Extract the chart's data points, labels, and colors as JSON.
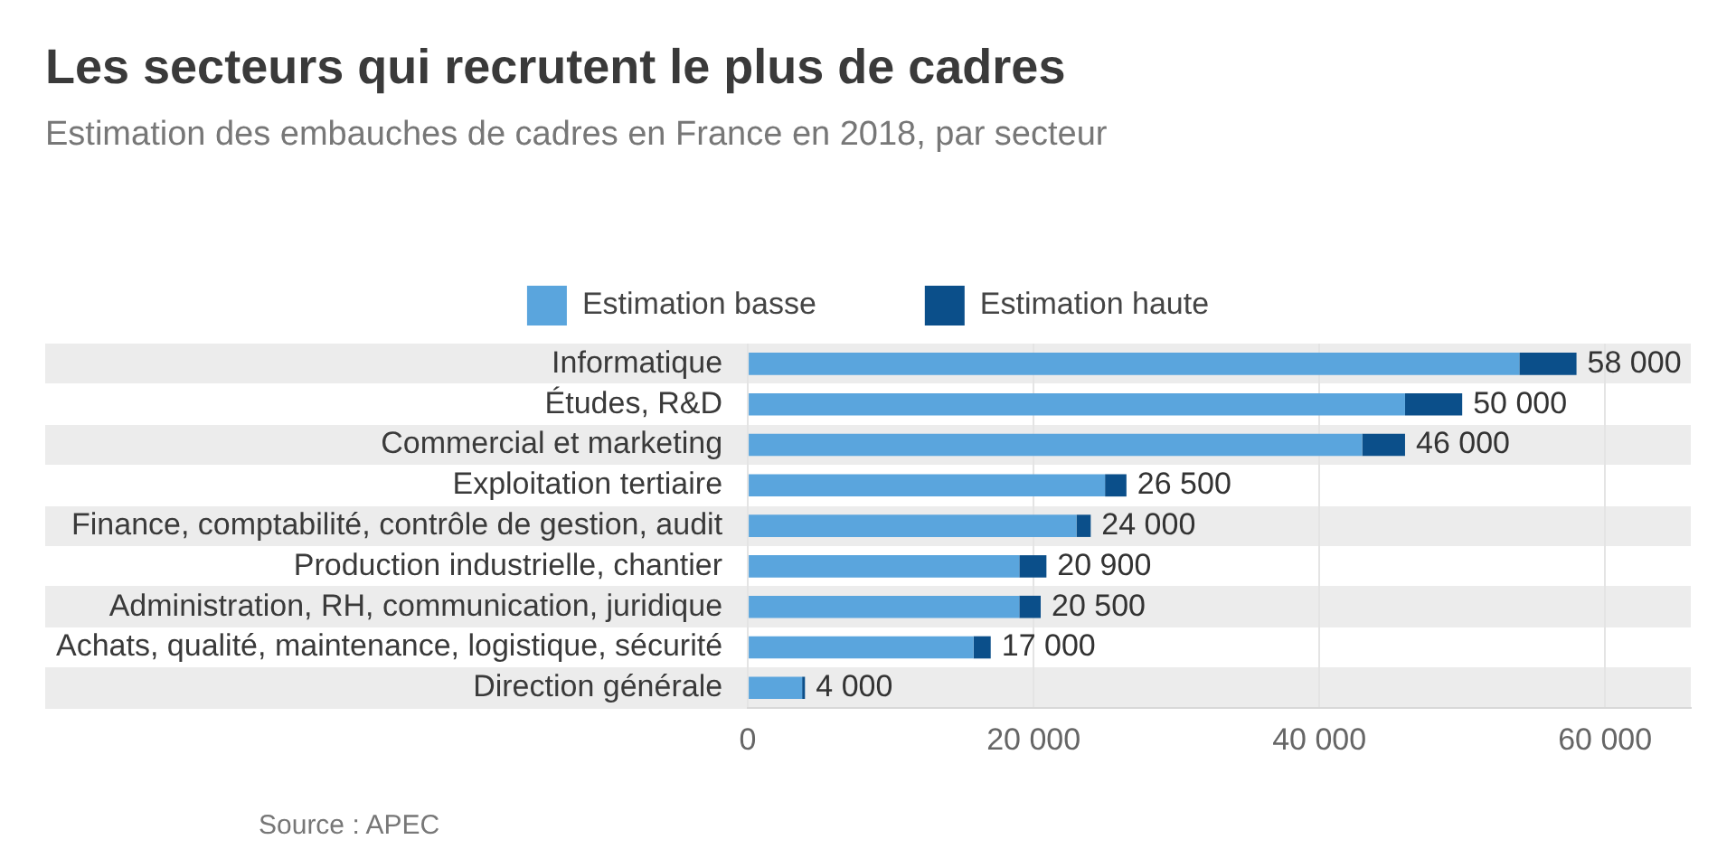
{
  "chart_data": {
    "type": "bar",
    "orientation": "horizontal",
    "stacked": true,
    "title": "Les secteurs qui recrutent le plus de cadres",
    "subtitle": "Estimation des embauches de cadres en France en 2018, par secteur",
    "categories": [
      "Informatique",
      "Études, R&D",
      "Commercial et marketing",
      "Exploitation tertiaire",
      "Finance, comptabilité, contrôle de gestion, audit",
      "Production industrielle, chantier",
      "Administration, RH, communication, juridique",
      "Achats, qualité, maintenance, logistique, sécurité",
      "Direction générale"
    ],
    "series": [
      {
        "name": "Estimation basse",
        "color": "#5aa5dd",
        "values": [
          54000,
          46000,
          43000,
          25000,
          23000,
          19000,
          19000,
          15800,
          3800
        ]
      },
      {
        "name": "Estimation haute",
        "color": "#0b4f8a",
        "values": [
          4000,
          4000,
          3000,
          1500,
          1000,
          1900,
          1500,
          1200,
          200
        ]
      }
    ],
    "totals": [
      "58 000",
      "50 000",
      "46 000",
      "26 500",
      "24 000",
      "20 900",
      "20 500",
      "17 000",
      "4 000"
    ],
    "xlim": [
      0,
      66000
    ],
    "xticks": [
      0,
      {
        "value": 20000,
        "label": "20 000"
      },
      {
        "value": 40000,
        "label": "40 000"
      },
      {
        "value": 60000,
        "label": "60 000"
      }
    ],
    "grid": "x",
    "legend": "top",
    "annotations": [
      "Source : APEC"
    ]
  }
}
